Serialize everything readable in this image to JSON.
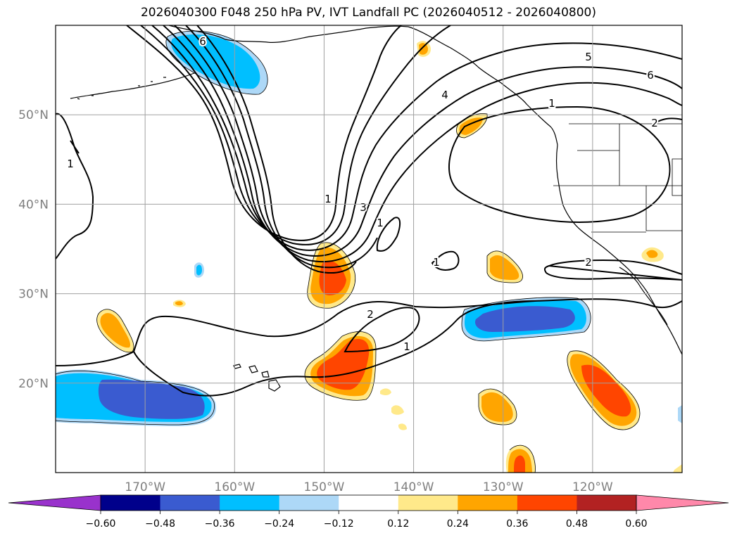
{
  "title": "2026040300 F048 250 hPa PV, IVT Landfall PC (2026040512 - 2026040800)",
  "map": {
    "projection": "PlateCarree",
    "lon_range": [
      -180,
      -110
    ],
    "lat_range": [
      10,
      60
    ],
    "lon_ticks": [
      {
        "value": -170,
        "label": "170°W"
      },
      {
        "value": -160,
        "label": "160°W"
      },
      {
        "value": -150,
        "label": "150°W"
      },
      {
        "value": -140,
        "label": "140°W"
      },
      {
        "value": -130,
        "label": "130°W"
      },
      {
        "value": -120,
        "label": "120°W"
      }
    ],
    "lat_ticks": [
      {
        "value": 50,
        "label": "50°N"
      },
      {
        "value": 40,
        "label": "40°N"
      },
      {
        "value": 30,
        "label": "30°N"
      },
      {
        "value": 20,
        "label": "20°N"
      }
    ],
    "gridlines": true
  },
  "contour_labels": {
    "nw_6": "6",
    "west_1": "1",
    "trough_1": "1",
    "trough_3": "3",
    "cutoff_1": "1",
    "small_1": "1",
    "sub_2": "2",
    "sub_1": "1",
    "ridge_4": "4",
    "ridge_5": "5",
    "ridge_6": "6",
    "ridge_1": "1",
    "ridge_2": "2",
    "coast_2": "2"
  },
  "colorbar": {
    "levels": [
      -0.6,
      -0.48,
      -0.36,
      -0.24,
      -0.12,
      0.12,
      0.24,
      0.36,
      0.48,
      0.6
    ],
    "labels": [
      "−0.60",
      "−0.48",
      "−0.36",
      "−0.24",
      "−0.12",
      "0.12",
      "0.24",
      "0.36",
      "0.48",
      "0.60"
    ],
    "colors": [
      "#9932cc",
      "#00008b",
      "#3a5bd0",
      "#00bfff",
      "#add8f7",
      "#ffffff",
      "#ffe98a",
      "#ffa500",
      "#ff4500",
      "#b22222",
      "#ff88aa"
    ],
    "extend": "both"
  }
}
